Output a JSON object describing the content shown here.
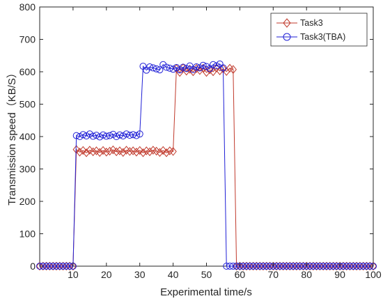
{
  "chart_data": {
    "type": "line",
    "xlabel": "Experimental time/s",
    "ylabel": "Transmission speed（KB/S）",
    "xlim": [
      0,
      100
    ],
    "ylim": [
      0,
      800
    ],
    "xticks": [
      10,
      20,
      30,
      40,
      50,
      60,
      70,
      80,
      90,
      100
    ],
    "yticks": [
      0,
      100,
      200,
      300,
      400,
      500,
      600,
      700,
      800
    ],
    "grid": false,
    "legend_position": "top-right",
    "series": [
      {
        "name": "Task3",
        "color": "#c0392b",
        "marker": "diamond",
        "x": [
          0,
          1,
          2,
          3,
          4,
          5,
          6,
          7,
          8,
          9,
          10,
          11,
          12,
          13,
          14,
          15,
          16,
          17,
          18,
          19,
          20,
          21,
          22,
          23,
          24,
          25,
          26,
          27,
          28,
          29,
          30,
          31,
          32,
          33,
          34,
          35,
          36,
          37,
          38,
          39,
          40,
          41,
          42,
          43,
          44,
          45,
          46,
          47,
          48,
          49,
          50,
          51,
          52,
          53,
          54,
          55,
          56,
          57,
          58,
          59,
          60,
          61,
          62,
          63,
          64,
          65,
          66,
          67,
          68,
          69,
          70,
          71,
          72,
          73,
          74,
          75,
          76,
          77,
          78,
          79,
          80,
          81,
          82,
          83,
          84,
          85,
          86,
          87,
          88,
          89,
          90,
          91,
          92,
          93,
          94,
          95,
          96,
          97,
          98,
          99,
          100
        ],
        "y": [
          0,
          0,
          0,
          0,
          0,
          0,
          0,
          0,
          0,
          0,
          0,
          360,
          352,
          357,
          350,
          358,
          353,
          356,
          351,
          357,
          352,
          355,
          359,
          353,
          356,
          351,
          358,
          354,
          356,
          352,
          357,
          350,
          356,
          353,
          358,
          355,
          351,
          357,
          350,
          356,
          354,
          610,
          598,
          612,
          602,
          608,
          600,
          610,
          604,
          611,
          598,
          606,
          600,
          612,
          603,
          609,
          601,
          611,
          607,
          0,
          0,
          0,
          0,
          0,
          0,
          0,
          0,
          0,
          0,
          0,
          0,
          0,
          0,
          0,
          0,
          0,
          0,
          0,
          0,
          0,
          0,
          0,
          0,
          0,
          0,
          0,
          0,
          0,
          0,
          0,
          0,
          0,
          0,
          0,
          0,
          0,
          0,
          0,
          0,
          0,
          0
        ]
      },
      {
        "name": "Task3(TBA)",
        "color": "#1f1fd6",
        "marker": "circle",
        "x": [
          0,
          1,
          2,
          3,
          4,
          5,
          6,
          7,
          8,
          9,
          10,
          11,
          12,
          13,
          14,
          15,
          16,
          17,
          18,
          19,
          20,
          21,
          22,
          23,
          24,
          25,
          26,
          27,
          28,
          29,
          30,
          31,
          32,
          33,
          34,
          35,
          36,
          37,
          38,
          39,
          40,
          41,
          42,
          43,
          44,
          45,
          46,
          47,
          48,
          49,
          50,
          51,
          52,
          53,
          54,
          55,
          56,
          57,
          58,
          59,
          60,
          61,
          62,
          63,
          64,
          65,
          66,
          67,
          68,
          69,
          70,
          71,
          72,
          73,
          74,
          75,
          76,
          77,
          78,
          79,
          80,
          81,
          82,
          83,
          84,
          85,
          86,
          87,
          88,
          89,
          90,
          91,
          92,
          93,
          94,
          95,
          96,
          97,
          98,
          99,
          100
        ],
        "y": [
          0,
          0,
          0,
          0,
          0,
          0,
          0,
          0,
          0,
          0,
          0,
          403,
          400,
          406,
          402,
          408,
          401,
          404,
          399,
          405,
          401,
          403,
          407,
          400,
          405,
          402,
          408,
          404,
          406,
          403,
          408,
          617,
          605,
          615,
          612,
          609,
          606,
          622,
          614,
          611,
          608,
          613,
          606,
          614,
          610,
          618,
          607,
          615,
          612,
          620,
          616,
          610,
          622,
          618,
          624,
          612,
          0,
          0,
          0,
          0,
          0,
          0,
          0,
          0,
          0,
          0,
          0,
          0,
          0,
          0,
          0,
          0,
          0,
          0,
          0,
          0,
          0,
          0,
          0,
          0,
          0,
          0,
          0,
          0,
          0,
          0,
          0,
          0,
          0,
          0,
          0,
          0,
          0,
          0,
          0,
          0,
          0,
          0,
          0,
          0,
          0
        ]
      }
    ]
  }
}
